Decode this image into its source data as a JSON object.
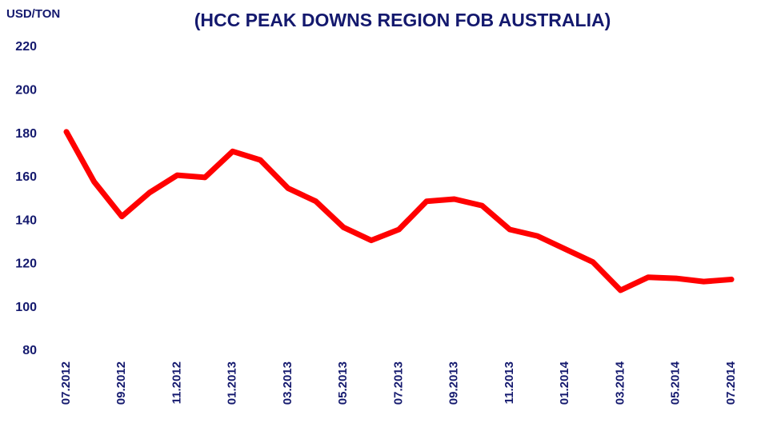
{
  "chart_data": {
    "type": "line",
    "title": "(HCC PEAK DOWNS REGION FOB AUSTRALIA)",
    "y_label": "USD/TON",
    "categories": [
      "07.2012",
      null,
      "09.2012",
      null,
      "11.2012",
      null,
      "01.2013",
      null,
      "03.2013",
      null,
      "05.2013",
      null,
      "07.2013",
      null,
      "09.2013",
      null,
      "11.2013",
      null,
      "01.2014",
      null,
      "03.2014",
      null,
      "05.2014",
      null,
      "07.2014"
    ],
    "series": [
      {
        "name": "HCC Peak Downs",
        "color": "#ff0000",
        "values": [
          181,
          158,
          142,
          153,
          161,
          160,
          172,
          168,
          155,
          149,
          137,
          131,
          136,
          149,
          150,
          147,
          136,
          133,
          127,
          121,
          108,
          114,
          113.5,
          112,
          113
        ]
      }
    ],
    "ylim": [
      80,
      220
    ],
    "yticks": [
      80,
      100,
      120,
      140,
      160,
      180,
      200,
      220
    ],
    "grid": false,
    "legend": false
  }
}
